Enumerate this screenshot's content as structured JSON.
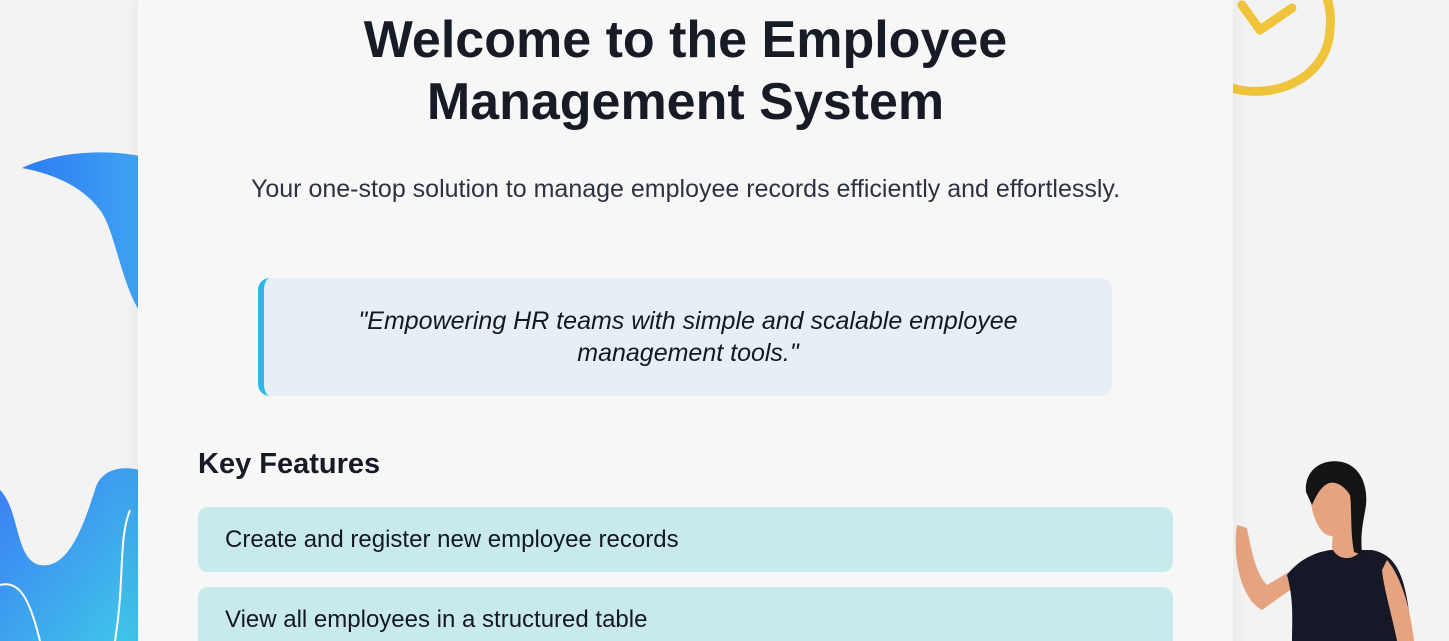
{
  "hero": {
    "title_line1": "Welcome to the Employee",
    "title_line2": "Management System",
    "subtitle": "Your one-stop solution to manage employee records efficiently and effortlessly."
  },
  "quote": {
    "text": "\"Empowering HR teams with simple and scalable employee management tools.\""
  },
  "features": {
    "heading": "Key Features",
    "items": [
      {
        "label": "Create and register new employee records"
      },
      {
        "label": "View all employees in a structured table"
      }
    ]
  },
  "colors": {
    "accent_blue": "#29b9e8",
    "feature_bg": "#c8eaec",
    "quote_bg": "#e8eef6",
    "check_yellow": "#f0c43a"
  },
  "icons": {
    "left_decoration": "abstract-blue-wave-illustration",
    "right_decoration": "woman-waving-illustration",
    "check": "check-circle-icon"
  }
}
